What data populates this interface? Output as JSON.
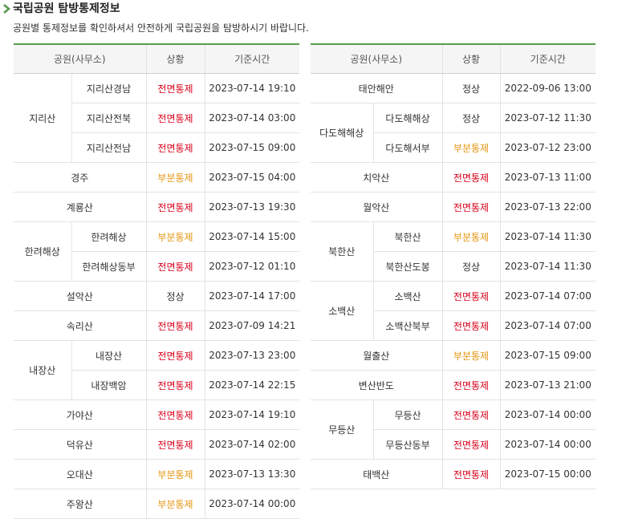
{
  "header": {
    "title": "국립공원 탐방통제정보",
    "subtitle": "공원별 통제정보를 확인하셔서 안전하게 국립공원을 탐방하시기 바랍니다."
  },
  "columns": {
    "park": "공원(사무소)",
    "status": "상황",
    "time": "기준시간"
  },
  "colors": {
    "total_closure": "#d8001a",
    "partial_closure": "#e5940f",
    "normal": "#333333",
    "header_accent": "#5a9a50"
  },
  "left_table": [
    {
      "park": "지리산",
      "offices": [
        {
          "name": "지리산경남",
          "status": "전면통제",
          "level": "total",
          "time": "2023-07-14 19:10"
        },
        {
          "name": "지리산전북",
          "status": "전면통제",
          "level": "total",
          "time": "2023-07-14 03:00"
        },
        {
          "name": "지리산전남",
          "status": "전면통제",
          "level": "total",
          "time": "2023-07-15 09:00"
        }
      ]
    },
    {
      "park": "경주",
      "status": "부분통제",
      "level": "partial",
      "time": "2023-07-15 04:00"
    },
    {
      "park": "계룡산",
      "status": "전면통제",
      "level": "total",
      "time": "2023-07-13 19:30"
    },
    {
      "park": "한려해상",
      "offices": [
        {
          "name": "한려해상",
          "status": "부분통제",
          "level": "partial",
          "time": "2023-07-14 15:00"
        },
        {
          "name": "한려해상동부",
          "status": "전면통제",
          "level": "total",
          "time": "2023-07-12 01:10"
        }
      ]
    },
    {
      "park": "설악산",
      "status": "정상",
      "level": "normal",
      "time": "2023-07-14 17:00"
    },
    {
      "park": "속리산",
      "status": "전면통제",
      "level": "total",
      "time": "2023-07-09 14:21"
    },
    {
      "park": "내장산",
      "offices": [
        {
          "name": "내장산",
          "status": "전면통제",
          "level": "total",
          "time": "2023-07-13 23:00"
        },
        {
          "name": "내장백암",
          "status": "전면통제",
          "level": "total",
          "time": "2023-07-14 22:15"
        }
      ]
    },
    {
      "park": "가야산",
      "status": "전면통제",
      "level": "total",
      "time": "2023-07-14 19:10"
    },
    {
      "park": "덕유산",
      "status": "전면통제",
      "level": "total",
      "time": "2023-07-14 02:00"
    },
    {
      "park": "오대산",
      "status": "부분통제",
      "level": "partial",
      "time": "2023-07-13 13:30"
    },
    {
      "park": "주왕산",
      "status": "부분통제",
      "level": "partial",
      "time": "2023-07-14 00:00"
    }
  ],
  "right_table": [
    {
      "park": "태안해안",
      "status": "정상",
      "level": "normal",
      "time": "2022-09-06 13:00"
    },
    {
      "park": "다도해해상",
      "offices": [
        {
          "name": "다도해해상",
          "status": "정상",
          "level": "normal",
          "time": "2023-07-12 11:30"
        },
        {
          "name": "다도해서부",
          "status": "부분통제",
          "level": "partial",
          "time": "2023-07-12 23:00"
        }
      ]
    },
    {
      "park": "치악산",
      "status": "전면통제",
      "level": "total",
      "time": "2023-07-13 11:00"
    },
    {
      "park": "월악산",
      "status": "전면통제",
      "level": "total",
      "time": "2023-07-13 22:00"
    },
    {
      "park": "북한산",
      "offices": [
        {
          "name": "북한산",
          "status": "부분통제",
          "level": "partial",
          "time": "2023-07-14 11:30"
        },
        {
          "name": "북한산도봉",
          "status": "정상",
          "level": "normal",
          "time": "2023-07-14 11:30"
        }
      ]
    },
    {
      "park": "소백산",
      "offices": [
        {
          "name": "소백산",
          "status": "전면통제",
          "level": "total",
          "time": "2023-07-14 07:00"
        },
        {
          "name": "소백산북부",
          "status": "전면통제",
          "level": "total",
          "time": "2023-07-14 07:00"
        }
      ]
    },
    {
      "park": "월출산",
      "status": "부분통제",
      "level": "partial",
      "time": "2023-07-15 09:00"
    },
    {
      "park": "변산반도",
      "status": "전면통제",
      "level": "total",
      "time": "2023-07-13 21:00"
    },
    {
      "park": "무등산",
      "offices": [
        {
          "name": "무등산",
          "status": "전면통제",
          "level": "total",
          "time": "2023-07-14 00:00"
        },
        {
          "name": "무등산동부",
          "status": "전면통제",
          "level": "total",
          "time": "2023-07-14 00:00"
        }
      ]
    },
    {
      "park": "태백산",
      "status": "전면통제",
      "level": "total",
      "time": "2023-07-15 00:00"
    }
  ]
}
